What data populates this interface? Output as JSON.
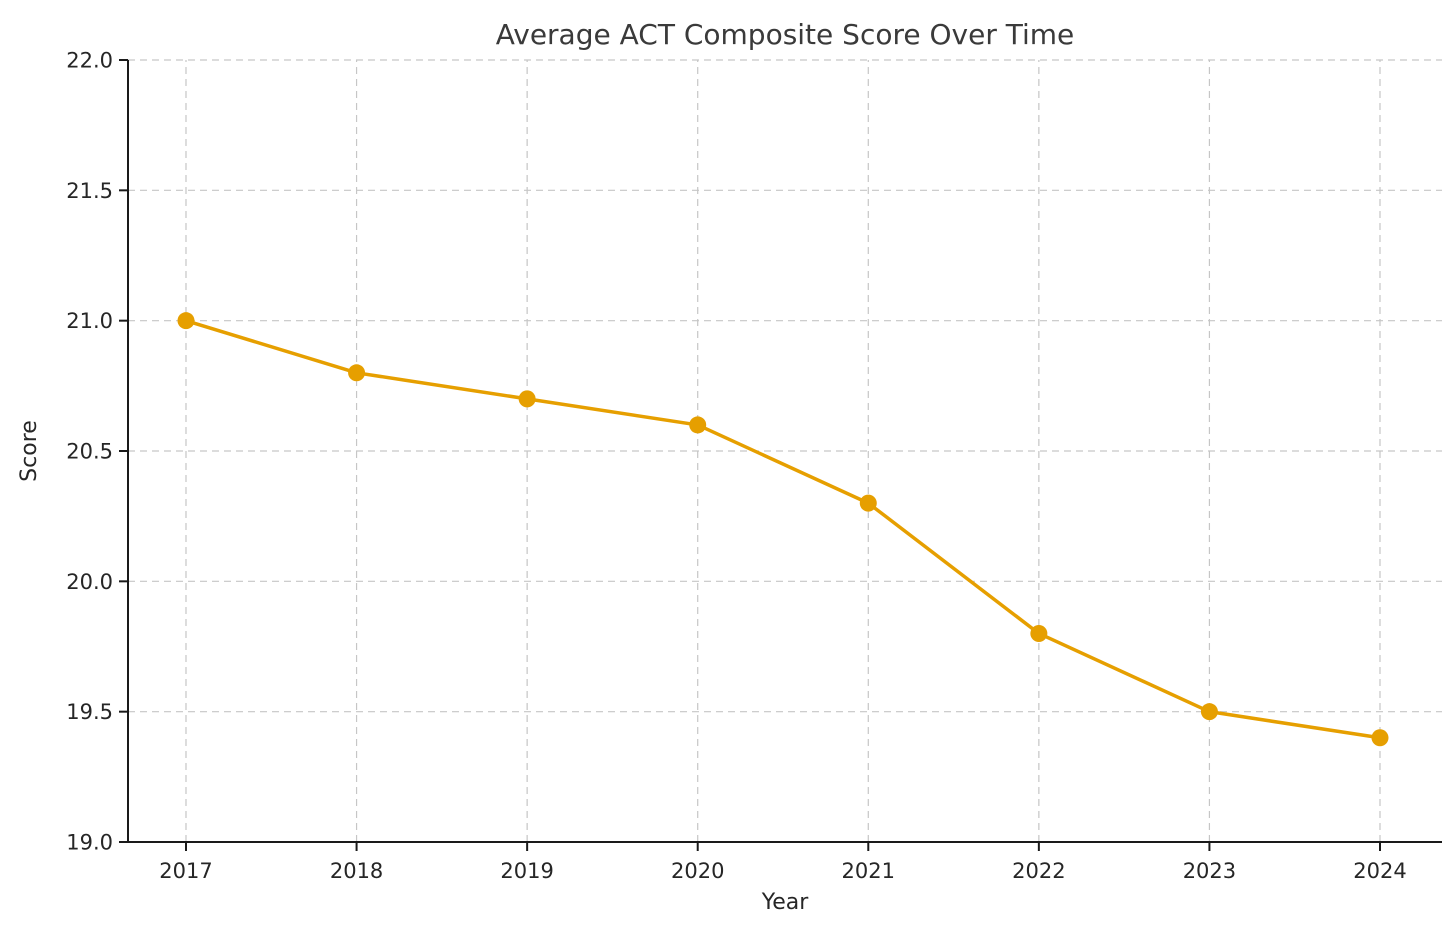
{
  "chart_data": {
    "type": "line",
    "title": "Average ACT Composite Score Over Time",
    "xlabel": "Year",
    "ylabel": "Score",
    "categories": [
      "2017",
      "2018",
      "2019",
      "2020",
      "2021",
      "2022",
      "2023",
      "2024"
    ],
    "series": [
      {
        "name": "Average ACT Composite Score",
        "values": [
          21.0,
          20.8,
          20.7,
          20.6,
          20.3,
          19.8,
          19.5,
          19.4
        ]
      }
    ],
    "ylim": [
      19.0,
      22.0
    ],
    "yticks": [
      19.0,
      19.5,
      20.0,
      20.5,
      21.0,
      21.5,
      22.0
    ],
    "ytick_labels": [
      "19.0",
      "19.5",
      "20.0",
      "20.5",
      "21.0",
      "21.5",
      "22.0"
    ],
    "grid": "both-dashed",
    "legend": "none",
    "line_color": "#E69F00",
    "marker": "circle",
    "grid_color": "#c6c6c6",
    "spine_color": "#1a1a1a"
  }
}
